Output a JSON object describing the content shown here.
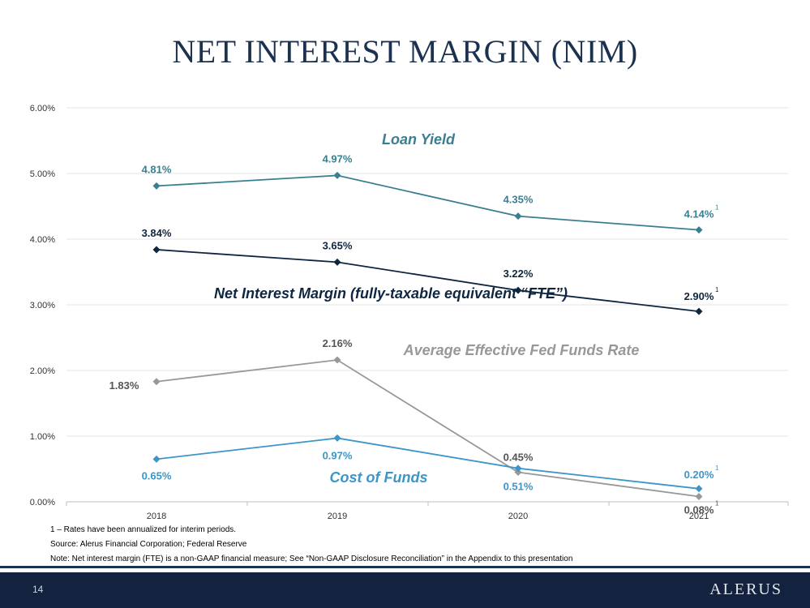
{
  "slide": {
    "title": "NET INTEREST MARGIN (NIM)",
    "page_number": "14",
    "logo": "ALERUS",
    "footnotes": [
      "1 – Rates have been annualized for interim periods.",
      "Source: Alerus Financial Corporation; Federal Reserve",
      "Note: Net interest margin (FTE) is a non-GAAP financial measure; See “Non-GAAP Disclosure Reconciliation” in the Appendix to this presentation"
    ]
  },
  "chart_data": {
    "type": "line",
    "categories": [
      "2018",
      "2019",
      "2020",
      "2021"
    ],
    "ylim": [
      0,
      6
    ],
    "yticks": [
      "0.00%",
      "1.00%",
      "2.00%",
      "3.00%",
      "4.00%",
      "5.00%",
      "6.00%"
    ],
    "grid": true,
    "series": [
      {
        "name": "Loan Yield",
        "color": "#3a7f90",
        "values": [
          4.81,
          4.97,
          4.35,
          4.14
        ],
        "labels": [
          "4.81%",
          "4.97%",
          "4.35%",
          "4.14%"
        ]
      },
      {
        "name": "Net Interest Margin (fully-taxable equivalent “FTE”)",
        "color": "#0f2640",
        "values": [
          3.84,
          3.65,
          3.22,
          2.9
        ],
        "labels": [
          "3.84%",
          "3.65%",
          "3.22%",
          "2.90%"
        ]
      },
      {
        "name": "Average Effective Fed Funds Rate",
        "color": "#989898",
        "values": [
          1.83,
          2.16,
          0.45,
          0.08
        ],
        "labels": [
          "1.83%",
          "2.16%",
          "0.45%",
          "0.08%"
        ]
      },
      {
        "name": "Cost of Funds",
        "color": "#3d95c8",
        "values": [
          0.65,
          0.97,
          0.51,
          0.2
        ],
        "labels": [
          "0.65%",
          "0.97%",
          "0.51%",
          "0.20%"
        ]
      }
    ],
    "footnote_marker": "1"
  }
}
